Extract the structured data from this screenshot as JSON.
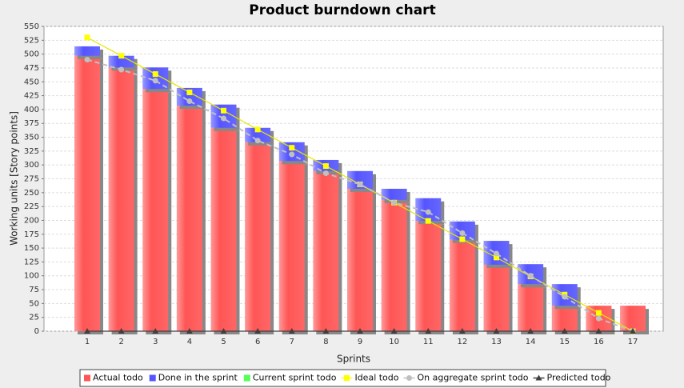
{
  "chart_data": {
    "type": "bar",
    "title": "Product burndown chart",
    "x_label": "Sprints",
    "y_label": "Working units [Story points]",
    "categories": [
      "1",
      "2",
      "3",
      "4",
      "5",
      "6",
      "7",
      "8",
      "9",
      "10",
      "11",
      "12",
      "13",
      "14",
      "15",
      "16",
      "17"
    ],
    "ylim": [
      0,
      550
    ],
    "yticks": [
      0,
      25,
      50,
      75,
      100,
      125,
      150,
      175,
      200,
      225,
      250,
      275,
      300,
      325,
      350,
      375,
      400,
      425,
      450,
      475,
      500,
      525,
      550
    ],
    "grid": true,
    "series": [
      {
        "name": "Actual todo",
        "color": "#ff5555",
        "kind": "bar",
        "values": [
          497,
          476,
          437,
          407,
          367,
          341,
          307,
          289,
          257,
          237,
          199,
          165,
          120,
          85,
          46,
          46,
          46
        ]
      },
      {
        "name": "Done in the sprint",
        "color": "#5555ff",
        "kind": "bar",
        "values": [
          17,
          21,
          39,
          32,
          42,
          26,
          34,
          20,
          32,
          20,
          41,
          33,
          43,
          36,
          39,
          0,
          0
        ]
      },
      {
        "name": "Current sprint todo",
        "color": "#55ff55",
        "kind": "bar",
        "values": [
          0,
          0,
          0,
          0,
          0,
          0,
          0,
          0,
          0,
          0,
          0,
          0,
          0,
          0,
          0,
          0,
          0
        ]
      },
      {
        "name": "Ideal todo",
        "color": "#ffff00",
        "kind": "line",
        "marker": "square",
        "values": [
          530,
          497,
          464,
          431,
          398,
          364,
          331,
          298,
          265,
          232,
          199,
          166,
          133,
          99,
          66,
          33,
          0
        ]
      },
      {
        "name": "On aggregate sprint todo",
        "color": "#c0c0c0",
        "kind": "line",
        "marker": "circle",
        "dashed": true,
        "values": [
          490,
          472,
          452,
          415,
          384,
          344,
          319,
          285,
          265,
          232,
          215,
          177,
          140,
          100,
          62,
          23,
          0
        ]
      },
      {
        "name": "Predicted todo",
        "color": "#404040",
        "kind": "line",
        "marker": "triangle",
        "values": [
          0,
          0,
          0,
          0,
          0,
          0,
          0,
          0,
          0,
          0,
          0,
          0,
          0,
          0,
          0,
          0,
          0
        ]
      }
    ]
  }
}
